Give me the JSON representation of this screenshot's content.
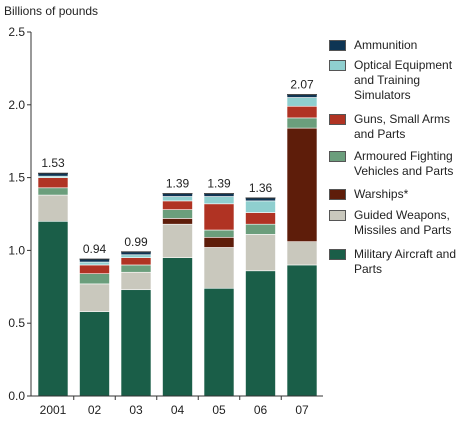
{
  "chart_data": {
    "type": "bar",
    "stacked": true,
    "ylabel": "Billions of pounds",
    "ylim": [
      0,
      2.5
    ],
    "yticks": [
      "0.0",
      "0.5",
      "1.0",
      "1.5",
      "2.0",
      "2.5"
    ],
    "categories": [
      "2001",
      "02",
      "03",
      "04",
      "05",
      "06",
      "07"
    ],
    "totals": [
      "1.53",
      "0.94",
      "0.99",
      "1.39",
      "1.39",
      "1.36",
      "2.07"
    ],
    "series": [
      {
        "name": "Military Aircraft and Parts",
        "color": "#1a5e48",
        "values": [
          1.2,
          0.58,
          0.73,
          0.95,
          0.74,
          0.86,
          0.9
        ]
      },
      {
        "name": "Guided Weapons, Missiles and Parts",
        "color": "#c9c8bd",
        "values": [
          0.18,
          0.19,
          0.12,
          0.23,
          0.28,
          0.25,
          0.16
        ]
      },
      {
        "name": "Warships*",
        "color": "#5e1d0a",
        "values": [
          0.0,
          0.0,
          0.0,
          0.04,
          0.07,
          0.0,
          0.78
        ]
      },
      {
        "name": "Armoured Fighting Vehicles and Parts",
        "color": "#6b9e7c",
        "values": [
          0.05,
          0.07,
          0.05,
          0.06,
          0.05,
          0.07,
          0.07
        ]
      },
      {
        "name": "Guns, Small Arms and Parts",
        "color": "#b03323",
        "values": [
          0.07,
          0.06,
          0.05,
          0.06,
          0.18,
          0.08,
          0.08
        ]
      },
      {
        "name": "Optical Equipment and Training Simulators",
        "color": "#8fcfcf",
        "values": [
          0.01,
          0.02,
          0.02,
          0.03,
          0.05,
          0.08,
          0.06
        ]
      },
      {
        "name": "Ammunition",
        "color": "#0e3554",
        "values": [
          0.02,
          0.02,
          0.02,
          0.02,
          0.02,
          0.02,
          0.02
        ]
      }
    ]
  },
  "legend": [
    {
      "label": "Ammunition",
      "color": "#0e3554"
    },
    {
      "label": "Optical Equipment and Training Simulators",
      "color": "#8fcfcf"
    },
    {
      "label": "Guns, Small Arms and Parts",
      "color": "#b03323"
    },
    {
      "label": "Armoured Fighting Vehicles and Parts",
      "color": "#6b9e7c"
    },
    {
      "label": "Warships*",
      "color": "#5e1d0a"
    },
    {
      "label": "Guided Weapons, Missiles and Parts",
      "color": "#c9c8bd"
    },
    {
      "label": "Military Aircraft and Parts",
      "color": "#1a5e48"
    }
  ]
}
